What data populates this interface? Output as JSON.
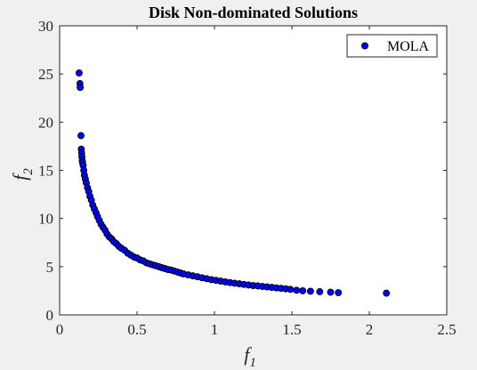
{
  "chart_data": {
    "type": "scatter",
    "title": "Disk Non-dominated Solutions",
    "xlabel": {
      "base": "f",
      "sub": "1"
    },
    "ylabel": {
      "base": "f",
      "sub": "2"
    },
    "xlim": [
      0,
      2.5
    ],
    "ylim": [
      0,
      30
    ],
    "xticks": [
      0,
      0.5,
      1,
      1.5,
      2,
      2.5
    ],
    "xtick_labels": [
      "0",
      "0.5",
      "1",
      "1.5",
      "2",
      "2.5"
    ],
    "yticks": [
      0,
      5,
      10,
      15,
      20,
      25,
      30
    ],
    "ytick_labels": [
      "0",
      "5",
      "10",
      "15",
      "20",
      "25",
      "30"
    ],
    "grid": false,
    "legend_position": "top-right",
    "series": [
      {
        "name": "MOLA",
        "color": "#0000ff",
        "edge_color": "#000000",
        "marker": "circle",
        "x": [
          0.126,
          0.131,
          0.133,
          0.138,
          0.14,
          0.142,
          0.144,
          0.146,
          0.148,
          0.152,
          0.156,
          0.16,
          0.166,
          0.172,
          0.18,
          0.188,
          0.196,
          0.205,
          0.214,
          0.224,
          0.235,
          0.245,
          0.256,
          0.268,
          0.28,
          0.293,
          0.306,
          0.32,
          0.335,
          0.35,
          0.366,
          0.383,
          0.4,
          0.42,
          0.44,
          0.46,
          0.48,
          0.5,
          0.52,
          0.54,
          0.56,
          0.58,
          0.6,
          0.62,
          0.64,
          0.66,
          0.68,
          0.7,
          0.72,
          0.74,
          0.76,
          0.78,
          0.8,
          0.83,
          0.86,
          0.89,
          0.92,
          0.95,
          0.98,
          1.01,
          1.04,
          1.07,
          1.1,
          1.13,
          1.16,
          1.19,
          1.22,
          1.25,
          1.28,
          1.31,
          1.34,
          1.37,
          1.4,
          1.43,
          1.46,
          1.49,
          1.53,
          1.57,
          1.62,
          1.68,
          1.75,
          1.8,
          2.11
        ],
        "y": [
          25.1,
          24.0,
          23.6,
          18.6,
          17.2,
          16.8,
          16.4,
          16.0,
          15.8,
          15.5,
          15.0,
          14.5,
          14.1,
          13.7,
          13.2,
          12.8,
          12.3,
          11.9,
          11.4,
          11.0,
          10.6,
          10.2,
          9.8,
          9.4,
          9.1,
          8.8,
          8.4,
          8.1,
          7.9,
          7.6,
          7.4,
          7.1,
          6.9,
          6.7,
          6.4,
          6.2,
          6.0,
          5.9,
          5.7,
          5.6,
          5.4,
          5.3,
          5.2,
          5.1,
          5.0,
          4.9,
          4.8,
          4.7,
          4.65,
          4.55,
          4.45,
          4.35,
          4.25,
          4.15,
          4.05,
          3.95,
          3.85,
          3.75,
          3.65,
          3.58,
          3.5,
          3.42,
          3.35,
          3.28,
          3.22,
          3.16,
          3.1,
          3.04,
          3.0,
          2.95,
          2.9,
          2.85,
          2.8,
          2.75,
          2.7,
          2.65,
          2.55,
          2.5,
          2.45,
          2.4,
          2.35,
          2.3,
          2.25
        ]
      }
    ]
  }
}
